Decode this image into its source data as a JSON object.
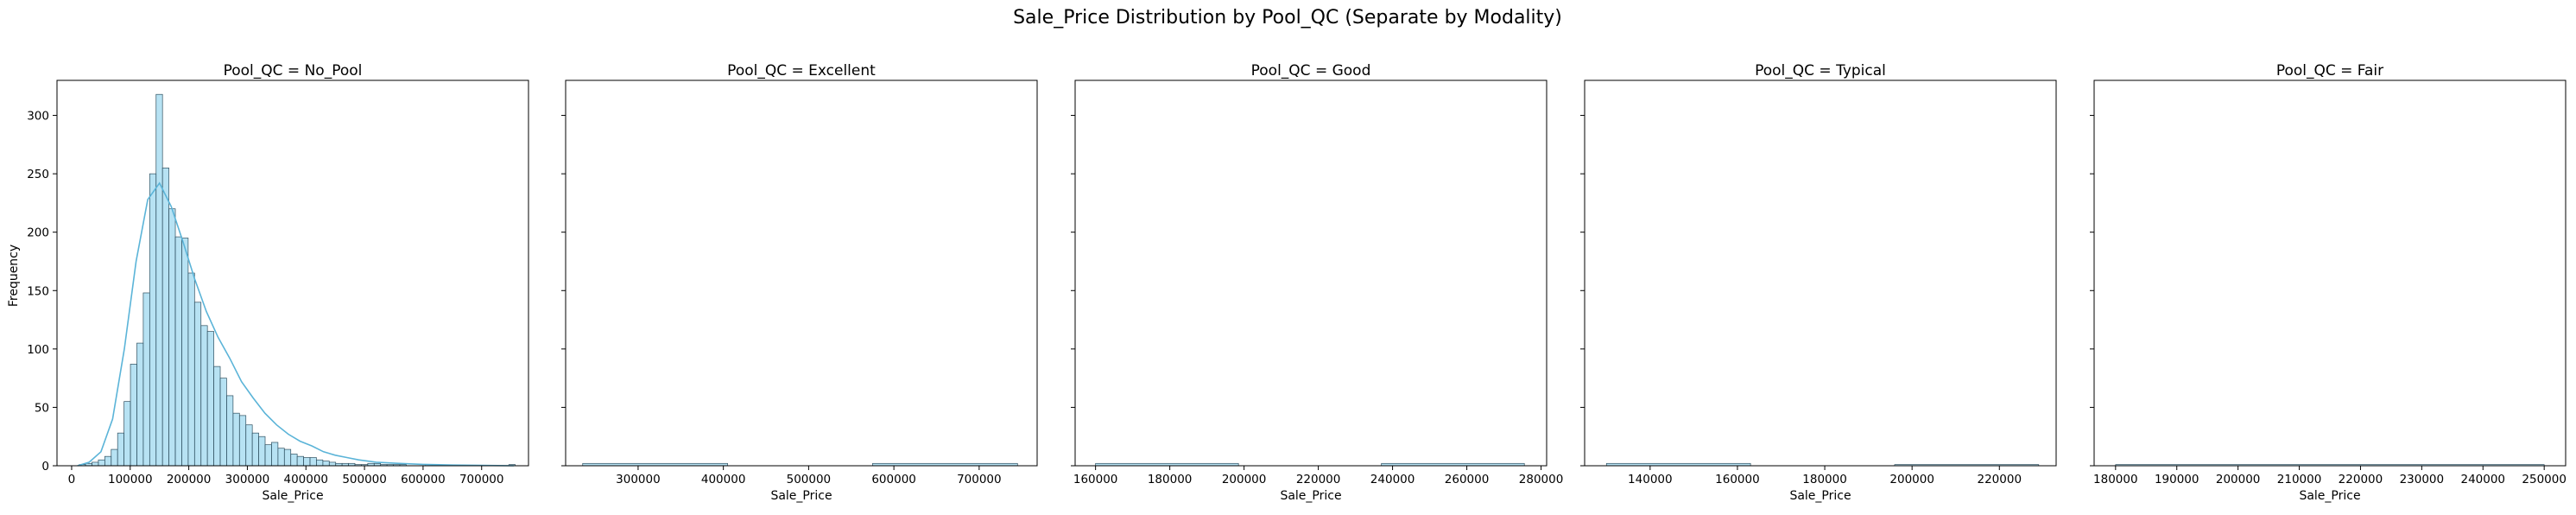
{
  "figure": {
    "suptitle": "Sale_Price Distribution by Pool_QC (Separate by Modality)",
    "shared_ylabel": "Frequency",
    "bar_fill": "#87ceeb",
    "bar_edge": "#2f4f5f",
    "kde_color": "#5bb4d8"
  },
  "chart_data": [
    {
      "type": "bar",
      "title": "Pool_QC = No_Pool",
      "xlabel": "Sale_Price",
      "ylabel": "Frequency",
      "xlim": [
        -25000,
        780000
      ],
      "ylim": [
        0,
        330
      ],
      "xticks": [
        0,
        100000,
        200000,
        300000,
        400000,
        500000,
        600000,
        700000
      ],
      "yticks": [
        0,
        50,
        100,
        150,
        200,
        250,
        300
      ],
      "bin_start": 12789,
      "bin_width": 10950,
      "counts": [
        1,
        2,
        3,
        5,
        8,
        14,
        28,
        55,
        87,
        105,
        148,
        250,
        318,
        255,
        220,
        196,
        195,
        165,
        140,
        120,
        115,
        85,
        75,
        60,
        45,
        43,
        35,
        28,
        25,
        18,
        20,
        15,
        14,
        10,
        8,
        7,
        7,
        5,
        4,
        3,
        2,
        2,
        2,
        1,
        1,
        2,
        2,
        1,
        1,
        1,
        1,
        0,
        0,
        0,
        1,
        0,
        0,
        0,
        0,
        0,
        0,
        0,
        0,
        0,
        0,
        0,
        0,
        1
      ],
      "kde": {
        "x": [
          10000,
          30000,
          50000,
          70000,
          90000,
          110000,
          130000,
          150000,
          170000,
          190000,
          210000,
          230000,
          250000,
          270000,
          290000,
          310000,
          330000,
          350000,
          370000,
          390000,
          410000,
          430000,
          450000,
          470000,
          490000,
          520000,
          560000,
          600000,
          650000,
          700000,
          755000
        ],
        "y": [
          0,
          3,
          12,
          40,
          100,
          175,
          228,
          242,
          222,
          192,
          160,
          132,
          110,
          92,
          72,
          58,
          45,
          35,
          27,
          21,
          17,
          12,
          9,
          7,
          5,
          3,
          2,
          1.2,
          0.6,
          0.3,
          0
        ]
      }
    },
    {
      "type": "bar",
      "title": "Pool_QC = Excellent",
      "xlabel": "Sale_Price",
      "xlim": [
        215000,
        768000
      ],
      "ylim": [
        0,
        330
      ],
      "xticks": [
        300000,
        400000,
        500000,
        600000,
        700000
      ],
      "yticks": [
        0,
        50,
        100,
        150,
        200,
        250,
        300
      ],
      "bins": [
        [
          235000,
          405000,
          2
        ],
        [
          405000,
          575000,
          0
        ],
        [
          575000,
          745000,
          2
        ]
      ]
    },
    {
      "type": "bar",
      "title": "Pool_QC = Good",
      "xlabel": "Sale_Price",
      "xlim": [
        154500,
        281500
      ],
      "ylim": [
        0,
        330
      ],
      "xticks": [
        160000,
        180000,
        200000,
        220000,
        240000,
        260000,
        280000
      ],
      "yticks": [
        0,
        50,
        100,
        150,
        200,
        250,
        300
      ],
      "bins": [
        [
          160000,
          198500,
          2
        ],
        [
          198500,
          237000,
          0
        ],
        [
          237000,
          275500,
          2
        ]
      ]
    },
    {
      "type": "bar",
      "title": "Pool_QC = Typical",
      "xlabel": "Sale_Price",
      "xlim": [
        125000,
        233000
      ],
      "ylim": [
        0,
        330
      ],
      "xticks": [
        140000,
        160000,
        180000,
        200000,
        220000
      ],
      "yticks": [
        0,
        50,
        100,
        150,
        200,
        250,
        300
      ],
      "bins": [
        [
          130000,
          163000,
          2
        ],
        [
          163000,
          196000,
          0
        ],
        [
          196000,
          229000,
          1
        ]
      ]
    },
    {
      "type": "bar",
      "title": "Pool_QC = Fair",
      "xlabel": "Sale_Price",
      "xlim": [
        176500,
        253500
      ],
      "ylim": [
        0,
        330
      ],
      "xticks": [
        180000,
        190000,
        200000,
        210000,
        220000,
        230000,
        240000,
        250000
      ],
      "yticks": [
        0,
        50,
        100,
        150,
        200,
        250,
        300
      ],
      "bins": [
        [
          180000,
          250000,
          1
        ]
      ]
    }
  ]
}
